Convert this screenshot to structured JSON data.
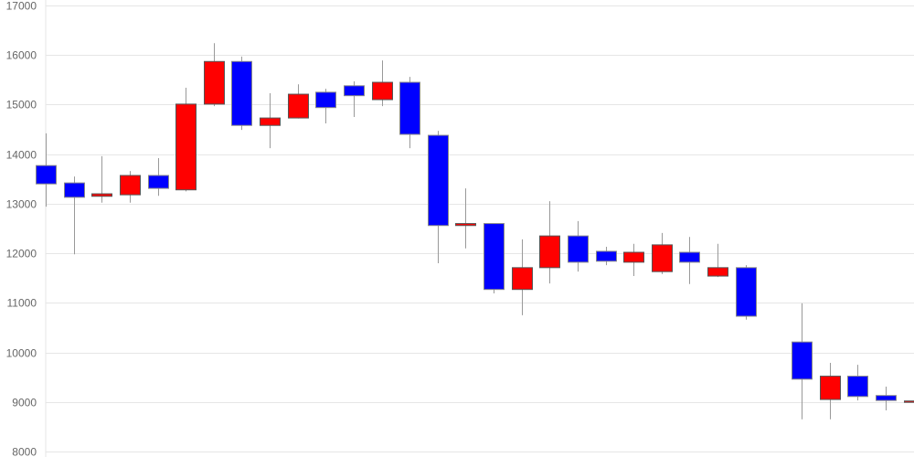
{
  "chart_data": {
    "type": "candlestick",
    "title": "",
    "xlabel": "",
    "ylabel": "",
    "ylim": [
      8000,
      17000
    ],
    "yticks": [
      "8000",
      "9000",
      "10000",
      "11000",
      "12000",
      "13000",
      "14000",
      "15000",
      "16000",
      "17000"
    ],
    "grid": true,
    "colors": {
      "up": "#ff0000",
      "down": "#0000ff",
      "wick": "#999999",
      "grid": "#e6e6e6",
      "axis_text": "#666666"
    },
    "candles": [
      {
        "open": 13770,
        "close": 13400,
        "high": 14420,
        "low": 12940
      },
      {
        "open": 13420,
        "close": 13130,
        "high": 13550,
        "low": 11980
      },
      {
        "open": 13150,
        "close": 13200,
        "high": 13960,
        "low": 13020
      },
      {
        "open": 13180,
        "close": 13570,
        "high": 13660,
        "low": 13020
      },
      {
        "open": 13570,
        "close": 13310,
        "high": 13920,
        "low": 13160
      },
      {
        "open": 13280,
        "close": 15010,
        "high": 15340,
        "low": 13250
      },
      {
        "open": 15010,
        "close": 15870,
        "high": 16240,
        "low": 14970
      },
      {
        "open": 15870,
        "close": 14580,
        "high": 15970,
        "low": 14490
      },
      {
        "open": 14580,
        "close": 14730,
        "high": 15230,
        "low": 14120
      },
      {
        "open": 14730,
        "close": 15210,
        "high": 15410,
        "low": 14720
      },
      {
        "open": 15250,
        "close": 14940,
        "high": 15320,
        "low": 14620
      },
      {
        "open": 15380,
        "close": 15180,
        "high": 15470,
        "low": 14750
      },
      {
        "open": 15100,
        "close": 15450,
        "high": 15890,
        "low": 14970
      },
      {
        "open": 15450,
        "close": 14400,
        "high": 15560,
        "low": 14120
      },
      {
        "open": 14380,
        "close": 12560,
        "high": 14470,
        "low": 11800
      },
      {
        "open": 12560,
        "close": 12600,
        "high": 13310,
        "low": 12100
      },
      {
        "open": 12600,
        "close": 11270,
        "high": 12600,
        "low": 11190
      },
      {
        "open": 11270,
        "close": 11710,
        "high": 12280,
        "low": 10750
      },
      {
        "open": 11710,
        "close": 12350,
        "high": 13050,
        "low": 11390
      },
      {
        "open": 12350,
        "close": 11820,
        "high": 12650,
        "low": 11630
      },
      {
        "open": 12040,
        "close": 11840,
        "high": 12130,
        "low": 11760
      },
      {
        "open": 11820,
        "close": 12020,
        "high": 12190,
        "low": 11540
      },
      {
        "open": 11630,
        "close": 12170,
        "high": 12410,
        "low": 11580
      },
      {
        "open": 12020,
        "close": 11820,
        "high": 12330,
        "low": 11380
      },
      {
        "open": 11540,
        "close": 11710,
        "high": 12190,
        "low": 11520
      },
      {
        "open": 11710,
        "close": 10730,
        "high": 11760,
        "low": 10660
      },
      null,
      {
        "open": 10210,
        "close": 9460,
        "high": 10990,
        "low": 8650
      },
      {
        "open": 9050,
        "close": 9520,
        "high": 9790,
        "low": 8650
      },
      {
        "open": 9520,
        "close": 9110,
        "high": 9750,
        "low": 9030
      },
      {
        "open": 9130,
        "close": 9030,
        "high": 9310,
        "low": 8830
      },
      {
        "open": 9000,
        "close": 9020,
        "high": 9350,
        "low": 8790
      }
    ]
  }
}
